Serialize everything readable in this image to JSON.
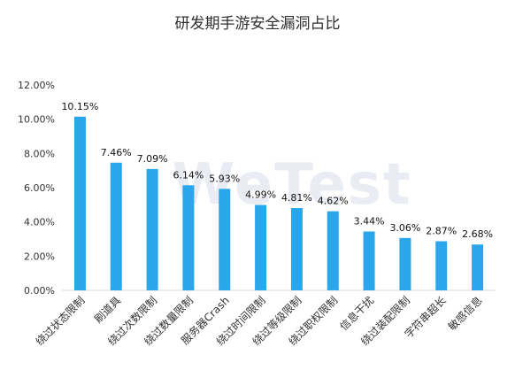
{
  "chart_data": {
    "type": "bar",
    "title": "研发期手游安全漏洞占比",
    "watermark": "WeTest",
    "xlabel": "",
    "ylabel": "",
    "ylim": [
      0,
      12
    ],
    "yticks": [
      0,
      2,
      4,
      6,
      8,
      10,
      12
    ],
    "ytick_labels": [
      "0.00%",
      "2.00%",
      "4.00%",
      "6.00%",
      "8.00%",
      "10.00%",
      "12.00%"
    ],
    "grid": false,
    "bar_color": "#2aa6ea",
    "categories": [
      "绕过状态限制",
      "刷道具",
      "绕过次数限制",
      "绕过数量限制",
      "服务器Crash",
      "绕过时间限制",
      "绕过等级限制",
      "绕过职权限制",
      "信息干扰",
      "绕过装配限制",
      "字符串超长",
      "敏感信息"
    ],
    "values": [
      10.15,
      7.46,
      7.09,
      6.14,
      5.93,
      4.99,
      4.81,
      4.62,
      3.44,
      3.06,
      2.87,
      2.68
    ],
    "value_labels": [
      "10.15%",
      "7.46%",
      "7.09%",
      "6.14%",
      "5.93%",
      "4.99%",
      "4.81%",
      "4.62%",
      "3.44%",
      "3.06%",
      "2.87%",
      "2.68%"
    ]
  }
}
